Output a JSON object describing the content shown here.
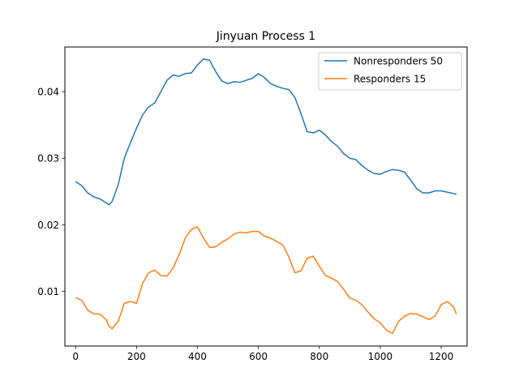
{
  "chart_data": {
    "type": "line",
    "title": "Jinyuan Process 1",
    "xlabel": "",
    "ylabel": "",
    "xlim": [
      -35,
      1285
    ],
    "ylim": [
      0.0018,
      0.0467
    ],
    "xticks": [
      0,
      200,
      400,
      600,
      800,
      1000,
      1200
    ],
    "xtick_labels": [
      "0",
      "200",
      "400",
      "600",
      "800",
      "1000",
      "1200"
    ],
    "yticks": [
      0.01,
      0.02,
      0.03,
      0.04
    ],
    "ytick_labels": [
      "0.01",
      "0.02",
      "0.03",
      "0.04"
    ],
    "grid": false,
    "legend_position": "upper right",
    "series": [
      {
        "name": "Nonresponders 50",
        "color": "#1f77b4",
        "x": [
          0,
          20,
          40,
          60,
          80,
          100,
          110,
          120,
          140,
          160,
          180,
          200,
          220,
          240,
          260,
          280,
          300,
          320,
          340,
          360,
          380,
          400,
          420,
          440,
          460,
          480,
          500,
          520,
          540,
          560,
          580,
          600,
          620,
          640,
          660,
          680,
          700,
          720,
          740,
          760,
          780,
          800,
          820,
          840,
          860,
          880,
          900,
          920,
          940,
          960,
          980,
          1000,
          1020,
          1040,
          1060,
          1080,
          1100,
          1120,
          1140,
          1160,
          1180,
          1200,
          1220,
          1240,
          1250
        ],
        "y": [
          0.0265,
          0.0259,
          0.0248,
          0.0242,
          0.0239,
          0.0233,
          0.023,
          0.0235,
          0.026,
          0.03,
          0.0323,
          0.0345,
          0.0365,
          0.0377,
          0.0383,
          0.04,
          0.0417,
          0.0425,
          0.0423,
          0.0427,
          0.0428,
          0.044,
          0.0449,
          0.0447,
          0.043,
          0.0416,
          0.0412,
          0.0415,
          0.0414,
          0.0417,
          0.042,
          0.0427,
          0.0421,
          0.0412,
          0.0408,
          0.0405,
          0.0403,
          0.0391,
          0.0367,
          0.034,
          0.0338,
          0.0342,
          0.0335,
          0.0325,
          0.0318,
          0.0307,
          0.03,
          0.0298,
          0.0289,
          0.0282,
          0.0277,
          0.0276,
          0.028,
          0.0283,
          0.0282,
          0.0279,
          0.0267,
          0.0254,
          0.0248,
          0.0248,
          0.0251,
          0.0251,
          0.0249,
          0.0247,
          0.0246
        ]
      },
      {
        "name": "Responders 15",
        "color": "#ff7f0e",
        "x": [
          0,
          20,
          40,
          60,
          80,
          100,
          110,
          120,
          140,
          160,
          180,
          200,
          220,
          240,
          260,
          280,
          300,
          320,
          340,
          360,
          380,
          400,
          420,
          440,
          460,
          480,
          500,
          520,
          540,
          560,
          580,
          600,
          620,
          640,
          660,
          680,
          700,
          720,
          740,
          760,
          780,
          800,
          820,
          840,
          860,
          880,
          900,
          920,
          940,
          960,
          980,
          1000,
          1020,
          1040,
          1060,
          1080,
          1100,
          1120,
          1140,
          1160,
          1180,
          1200,
          1220,
          1240,
          1250
        ],
        "y": [
          0.0091,
          0.0087,
          0.0072,
          0.0066,
          0.0066,
          0.0058,
          0.0048,
          0.0044,
          0.0055,
          0.0082,
          0.0085,
          0.0082,
          0.0112,
          0.0128,
          0.0132,
          0.0124,
          0.0123,
          0.0135,
          0.0155,
          0.018,
          0.0193,
          0.0197,
          0.018,
          0.0166,
          0.0167,
          0.0174,
          0.0179,
          0.0186,
          0.0189,
          0.0188,
          0.019,
          0.019,
          0.0183,
          0.018,
          0.0175,
          0.017,
          0.0152,
          0.0128,
          0.0131,
          0.015,
          0.0153,
          0.0138,
          0.0124,
          0.012,
          0.0115,
          0.0103,
          0.009,
          0.0087,
          0.008,
          0.0069,
          0.0059,
          0.0053,
          0.0042,
          0.0037,
          0.0055,
          0.0063,
          0.0067,
          0.0066,
          0.0062,
          0.0058,
          0.0063,
          0.008,
          0.0085,
          0.0077,
          0.0066
        ]
      }
    ]
  }
}
